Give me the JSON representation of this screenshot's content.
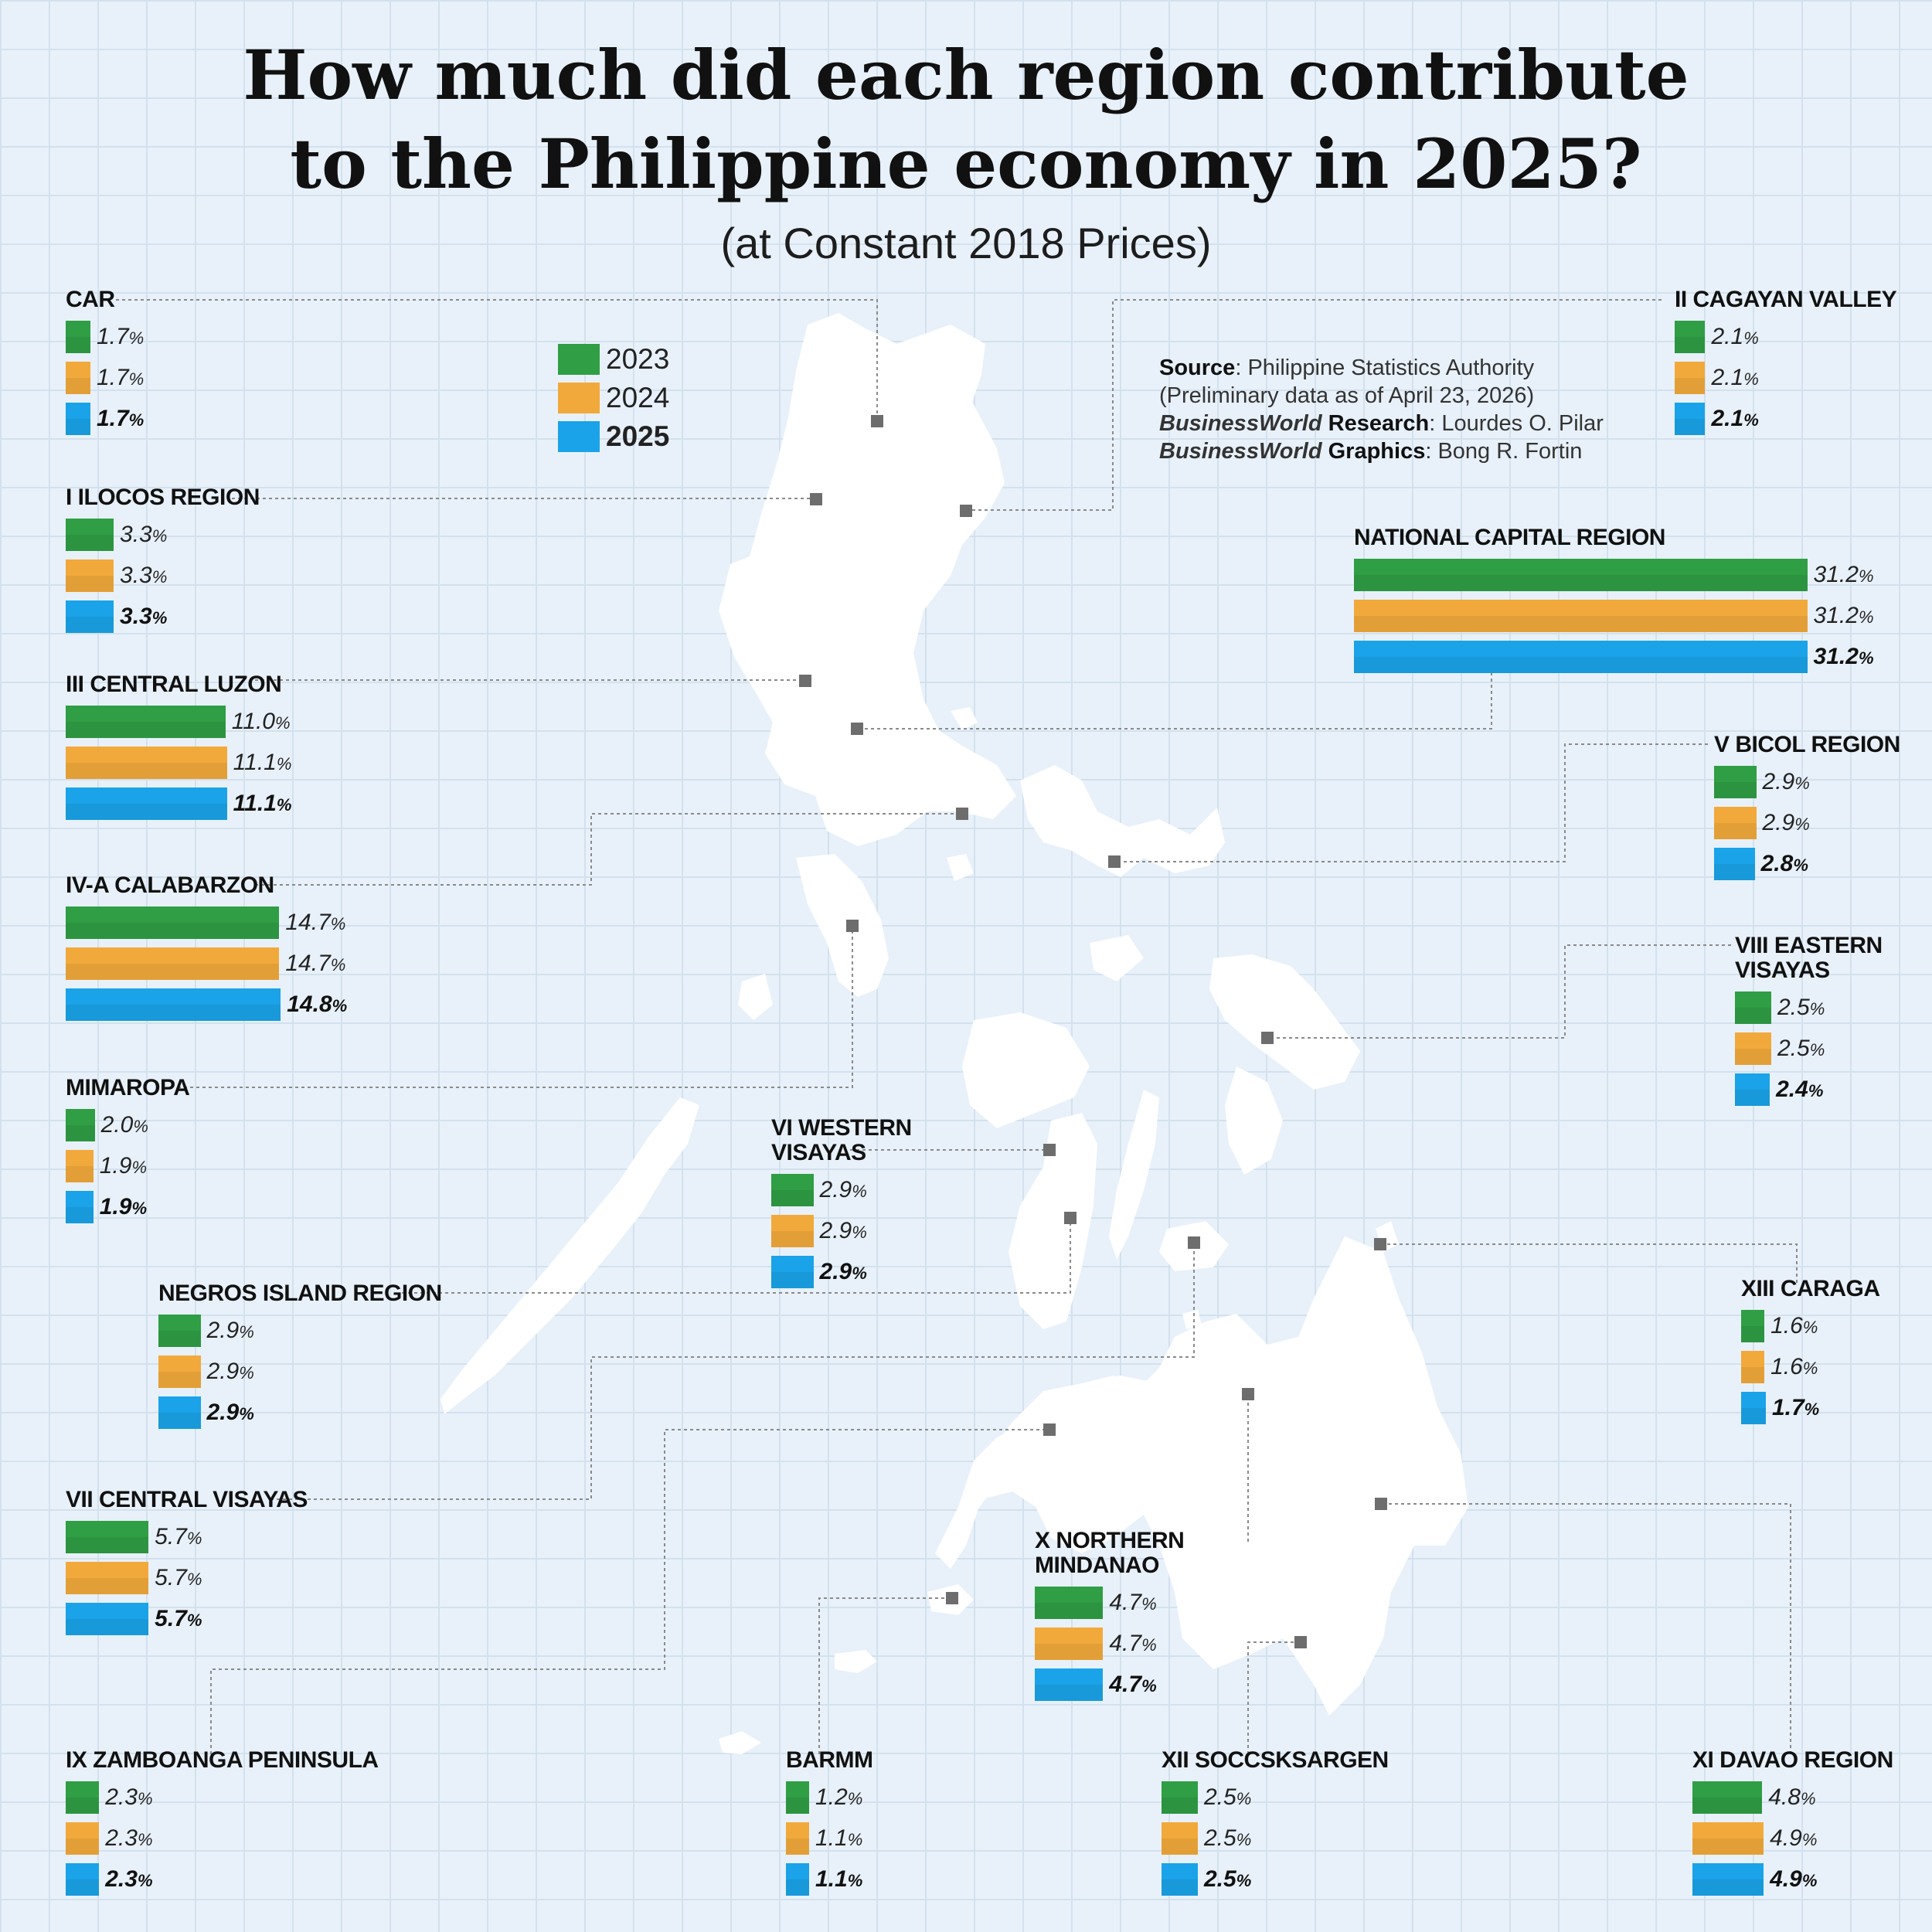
{
  "title_line1": "How much did each region contribute",
  "title_line2": "to the Philippine economy in 2025?",
  "subtitle": "(at Constant 2018 Prices)",
  "legend": {
    "items": [
      {
        "label": "2023",
        "color": "#2f9e44"
      },
      {
        "label": "2024",
        "color": "#f2a93b"
      },
      {
        "label": "2025",
        "color": "#1aa3e8"
      }
    ]
  },
  "source": {
    "l1_key": "Source",
    "l1_val": ": Philippine Statistics Authority",
    "l2": "(Preliminary data as of April 23, 2026)",
    "l3_key": "BusinessWorld",
    "l3_key2": " Research",
    "l3_val": ": Lourdes O. Pilar",
    "l4_key": "BusinessWorld",
    "l4_key2": " Graphics",
    "l4_val": ": Bong R. Fortin"
  },
  "chart_data": {
    "type": "bar",
    "title": "How much did each region contribute to the Philippine economy in 2025?",
    "subtitle": "(at Constant 2018 Prices)",
    "unit": "%",
    "series_names": [
      "2023",
      "2024",
      "2025"
    ],
    "colors": {
      "2023": "#2f9e44",
      "2024": "#f2a93b",
      "2025": "#1aa3e8"
    },
    "regions": [
      {
        "name": "CAR",
        "values": [
          1.7,
          1.7,
          1.7
        ],
        "labels": [
          "1.7",
          "1.7",
          "1.7"
        ]
      },
      {
        "name": "I ILOCOS REGION",
        "values": [
          3.3,
          3.3,
          3.3
        ],
        "labels": [
          "3.3",
          "3.3",
          "3.3"
        ]
      },
      {
        "name": "III CENTRAL LUZON",
        "values": [
          11.0,
          11.1,
          11.1
        ],
        "labels": [
          "11.0",
          "11.1",
          "11.1"
        ]
      },
      {
        "name": "IV-A CALABARZON",
        "values": [
          14.7,
          14.7,
          14.8
        ],
        "labels": [
          "14.7",
          "14.7",
          "14.8"
        ]
      },
      {
        "name": "MIMAROPA",
        "values": [
          2.0,
          1.9,
          1.9
        ],
        "labels": [
          "2.0",
          "1.9",
          "1.9"
        ]
      },
      {
        "name": "NEGROS ISLAND REGION",
        "values": [
          2.9,
          2.9,
          2.9
        ],
        "labels": [
          "2.9",
          "2.9",
          "2.9"
        ]
      },
      {
        "name": "VII CENTRAL VISAYAS",
        "values": [
          5.7,
          5.7,
          5.7
        ],
        "labels": [
          "5.7",
          "5.7",
          "5.7"
        ]
      },
      {
        "name": "IX ZAMBOANGA PENINSULA",
        "values": [
          2.3,
          2.3,
          2.3
        ],
        "labels": [
          "2.3",
          "2.3",
          "2.3"
        ]
      },
      {
        "name": "BARMM",
        "values": [
          1.2,
          1.1,
          1.1
        ],
        "labels": [
          "1.2",
          "1.1",
          "1.1"
        ]
      },
      {
        "name": "XII SOCCSKSARGEN",
        "values": [
          2.5,
          2.5,
          2.5
        ],
        "labels": [
          "2.5",
          "2.5",
          "2.5"
        ]
      },
      {
        "name": "XI DAVAO REGION",
        "values": [
          4.8,
          4.9,
          4.9
        ],
        "labels": [
          "4.8",
          "4.9",
          "4.9"
        ]
      },
      {
        "name": "XIII CARAGA",
        "values": [
          1.6,
          1.6,
          1.7
        ],
        "labels": [
          "1.6",
          "1.6",
          "1.7"
        ]
      },
      {
        "name": "VIII EASTERN VISAYAS",
        "values": [
          2.5,
          2.5,
          2.4
        ],
        "labels": [
          "2.5",
          "2.5",
          "2.4"
        ]
      },
      {
        "name": "V BICOL REGION",
        "values": [
          2.9,
          2.9,
          2.8
        ],
        "labels": [
          "2.9",
          "2.9",
          "2.8"
        ]
      },
      {
        "name": "NATIONAL CAPITAL REGION",
        "values": [
          31.2,
          31.2,
          31.2
        ],
        "labels": [
          "31.2",
          "31.2",
          "31.2"
        ]
      },
      {
        "name": "II CAGAYAN VALLEY",
        "values": [
          2.1,
          2.1,
          2.1
        ],
        "labels": [
          "2.1",
          "2.1",
          "2.1"
        ]
      },
      {
        "name": "VI WESTERN VISAYAS",
        "values": [
          2.9,
          2.9,
          2.9
        ],
        "labels": [
          "2.9",
          "2.9",
          "2.9"
        ]
      },
      {
        "name": "X NORTHERN MINDANAO",
        "values": [
          4.7,
          4.7,
          4.7
        ],
        "labels": [
          "4.7",
          "4.7",
          "4.7"
        ]
      }
    ]
  }
}
